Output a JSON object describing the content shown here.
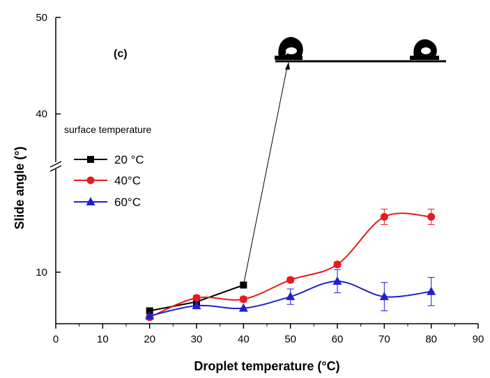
{
  "chart_data": {
    "type": "line",
    "panel_label": "(c)",
    "xlabel": "Droplet temperature (°C)",
    "ylabel": "Slide angle (°)",
    "xlim": [
      0,
      90
    ],
    "x_ticks": [
      "0",
      "10",
      "20",
      "30",
      "40",
      "50",
      "60",
      "70",
      "80",
      "90"
    ],
    "y_ticks": [
      "10",
      "40",
      "50"
    ],
    "y_axis_break": true,
    "lower_segment_ylim": [
      6,
      18
    ],
    "upper_segment_ylim": [
      35,
      50
    ],
    "legend_title": "surface temperature",
    "legend_placement": "left",
    "inset": "droplet images on surface with arrow from 20 °C series at x=40",
    "x": [
      20,
      30,
      40,
      50,
      60,
      70,
      80
    ],
    "series": [
      {
        "name": "20 °C",
        "color": "#000000",
        "marker": "square",
        "x": [
          20,
          30,
          40
        ],
        "values": [
          7.0,
          7.7,
          9.0
        ],
        "errors": [
          0.0,
          0.0,
          0.0
        ]
      },
      {
        "name": "40°C",
        "color": "#e8191b",
        "marker": "circle",
        "x": [
          20,
          30,
          40,
          50,
          60,
          70,
          80
        ],
        "values": [
          6.5,
          8.0,
          7.9,
          9.4,
          10.6,
          14.3,
          14.3
        ],
        "errors": [
          0.0,
          0.2,
          0.2,
          0.2,
          0.2,
          0.6,
          0.6
        ]
      },
      {
        "name": "60°C",
        "color": "#1f1fd0",
        "marker": "triangle",
        "x": [
          20,
          30,
          40,
          50,
          60,
          70,
          80
        ],
        "values": [
          6.6,
          7.4,
          7.2,
          8.1,
          9.3,
          8.1,
          8.5
        ],
        "errors": [
          0.0,
          0.0,
          0.0,
          0.6,
          0.9,
          1.1,
          1.1
        ]
      }
    ]
  }
}
